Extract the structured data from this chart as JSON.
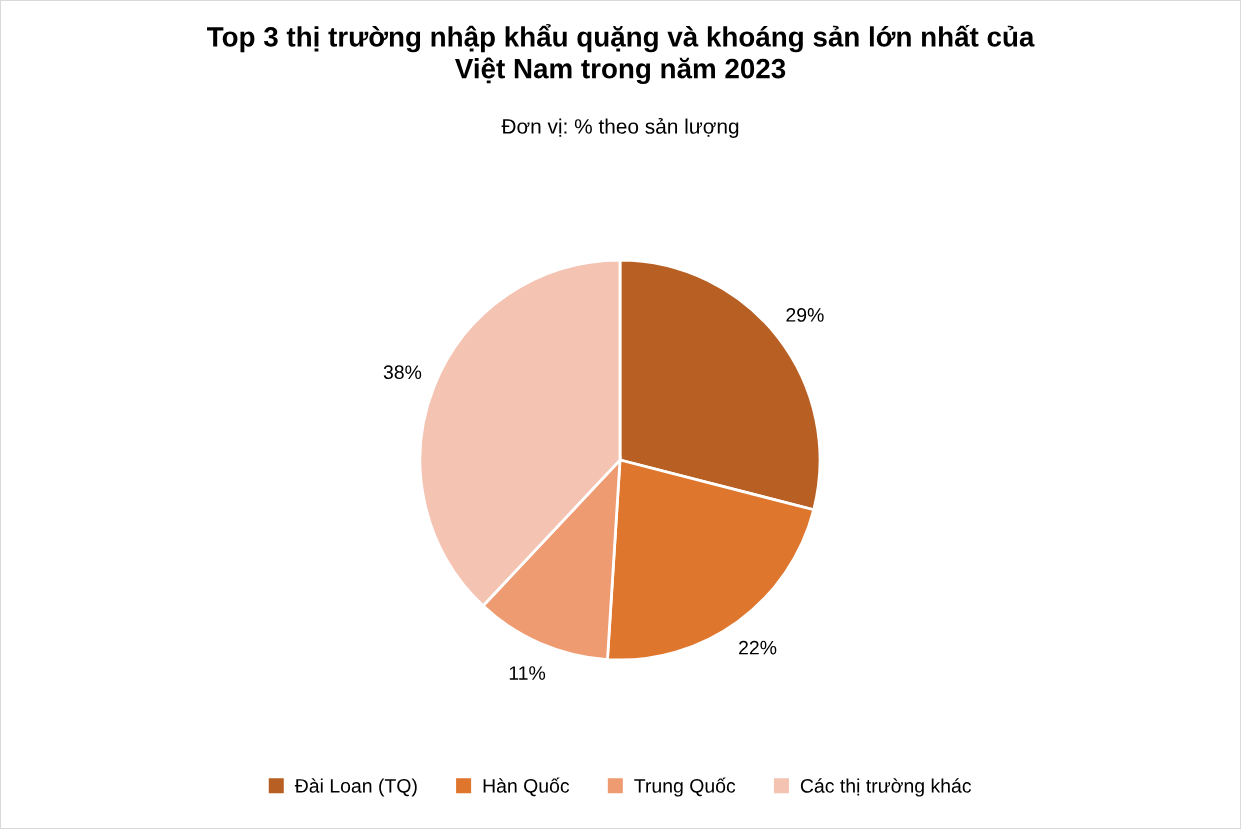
{
  "chart_data": {
    "type": "pie",
    "title": "Top 3 thị trường nhập khẩu quặng và khoáng sản lớn nhất của\nViệt Nam trong năm 2023",
    "subtitle": "Đơn vị: % theo sản lượng",
    "categories": [
      "Đài Loan (TQ)",
      "Hàn Quốc",
      "Trung Quốc",
      "Các thị trường khác"
    ],
    "values": [
      29,
      22,
      11,
      38
    ],
    "colors": [
      "#b86023",
      "#df762e",
      "#ef9b72",
      "#f4c3b2"
    ],
    "value_labels": [
      "29%",
      "22%",
      "11%",
      "38%"
    ],
    "legend": "bottom"
  }
}
